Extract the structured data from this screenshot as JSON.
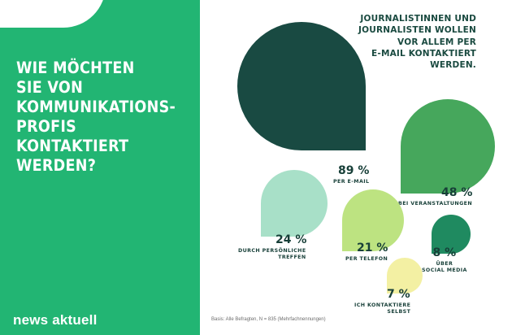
{
  "headline": "WIE MÖCHTEN\nSIE VON\nKOMMUNIKATIONS-\nPROFIS\nKONTAKTIERT\nWERDEN?",
  "subtitle": "JOURNALISTINNEN UND\nJOURNALISTEN WOLLEN\nVOR ALLEM PER\nE-MAIL KONTAKTIERT\nWERDEN.",
  "logo": "news aktuell",
  "footnote": "Basis: Alle Befragten, N = 835 (Mehrfachnennungen)",
  "colors": {
    "panel": "#22b573",
    "text": "#173f38"
  },
  "chart_data": {
    "type": "bubble",
    "categories": [
      "Per E-Mail",
      "Bei Veranstaltungen",
      "Durch persönliche Treffen",
      "Per Telefon",
      "Über Social Media",
      "Ich kontaktiere selbst"
    ],
    "values": [
      89,
      48,
      24,
      21,
      8,
      7
    ],
    "unit": "%",
    "items": [
      {
        "value": 89,
        "pct": "89 %",
        "label": "PER E-MAIL",
        "color": "#194a42"
      },
      {
        "value": 48,
        "pct": "48 %",
        "label": "BEI VERANSTALTUNGEN",
        "color": "#46a75c"
      },
      {
        "value": 24,
        "pct": "24 %",
        "label": "DURCH PERSÖNLICHE\nTREFFEN",
        "color": "#a8e0c8"
      },
      {
        "value": 21,
        "pct": "21 %",
        "label": "PER TELEFON",
        "color": "#bde381"
      },
      {
        "value": 8,
        "pct": "8 %",
        "label": "ÜBER\nSOCIAL MEDIA",
        "color": "#1f8a60"
      },
      {
        "value": 7,
        "pct": "7 %",
        "label": "ICH KONTAKTIERE\nSELBST",
        "color": "#f3f0a3"
      }
    ]
  }
}
